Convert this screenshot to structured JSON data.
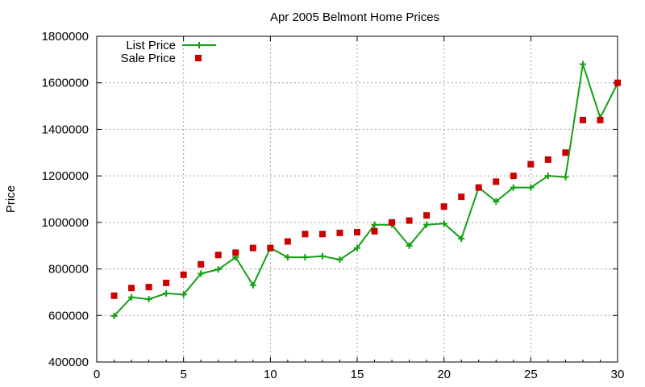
{
  "chart_data": {
    "type": "line",
    "title": "Apr 2005 Belmont Home Prices",
    "xlabel": "",
    "ylabel": "Price",
    "xlim": [
      0,
      30
    ],
    "ylim": [
      400000,
      1800000
    ],
    "xticks": [
      0,
      5,
      10,
      15,
      20,
      25,
      30
    ],
    "yticks": [
      400000,
      600000,
      800000,
      1000000,
      1200000,
      1400000,
      1600000,
      1800000
    ],
    "grid": true,
    "legend_position": "top-left",
    "series": [
      {
        "name": "List Price",
        "style": "line-plus",
        "color": "#11a011",
        "x": [
          1,
          2,
          3,
          4,
          5,
          6,
          7,
          8,
          9,
          10,
          11,
          12,
          13,
          14,
          15,
          16,
          17,
          18,
          19,
          20,
          21,
          22,
          23,
          24,
          25,
          26,
          27,
          28,
          29,
          30
        ],
        "values": [
          598000,
          678000,
          670000,
          695000,
          690000,
          780000,
          798000,
          850000,
          730000,
          890000,
          850000,
          850000,
          855000,
          840000,
          890000,
          990000,
          990000,
          900000,
          990000,
          995000,
          930000,
          1150000,
          1090000,
          1150000,
          1150000,
          1200000,
          1195000,
          1680000,
          1450000,
          1598000
        ]
      },
      {
        "name": "Sale Price",
        "style": "square-marker",
        "color": "#cc0000",
        "x": [
          1,
          2,
          3,
          4,
          5,
          6,
          7,
          8,
          9,
          10,
          11,
          12,
          13,
          14,
          15,
          16,
          17,
          18,
          19,
          20,
          21,
          22,
          23,
          24,
          25,
          26,
          27,
          28,
          29,
          30
        ],
        "values": [
          685000,
          718000,
          722000,
          740000,
          775000,
          820000,
          860000,
          870000,
          890000,
          890000,
          918000,
          950000,
          950000,
          955000,
          958000,
          962000,
          1000000,
          1008000,
          1030000,
          1068000,
          1110000,
          1150000,
          1175000,
          1200000,
          1250000,
          1270000,
          1300000,
          1440000,
          1440000,
          1600000
        ]
      }
    ]
  }
}
